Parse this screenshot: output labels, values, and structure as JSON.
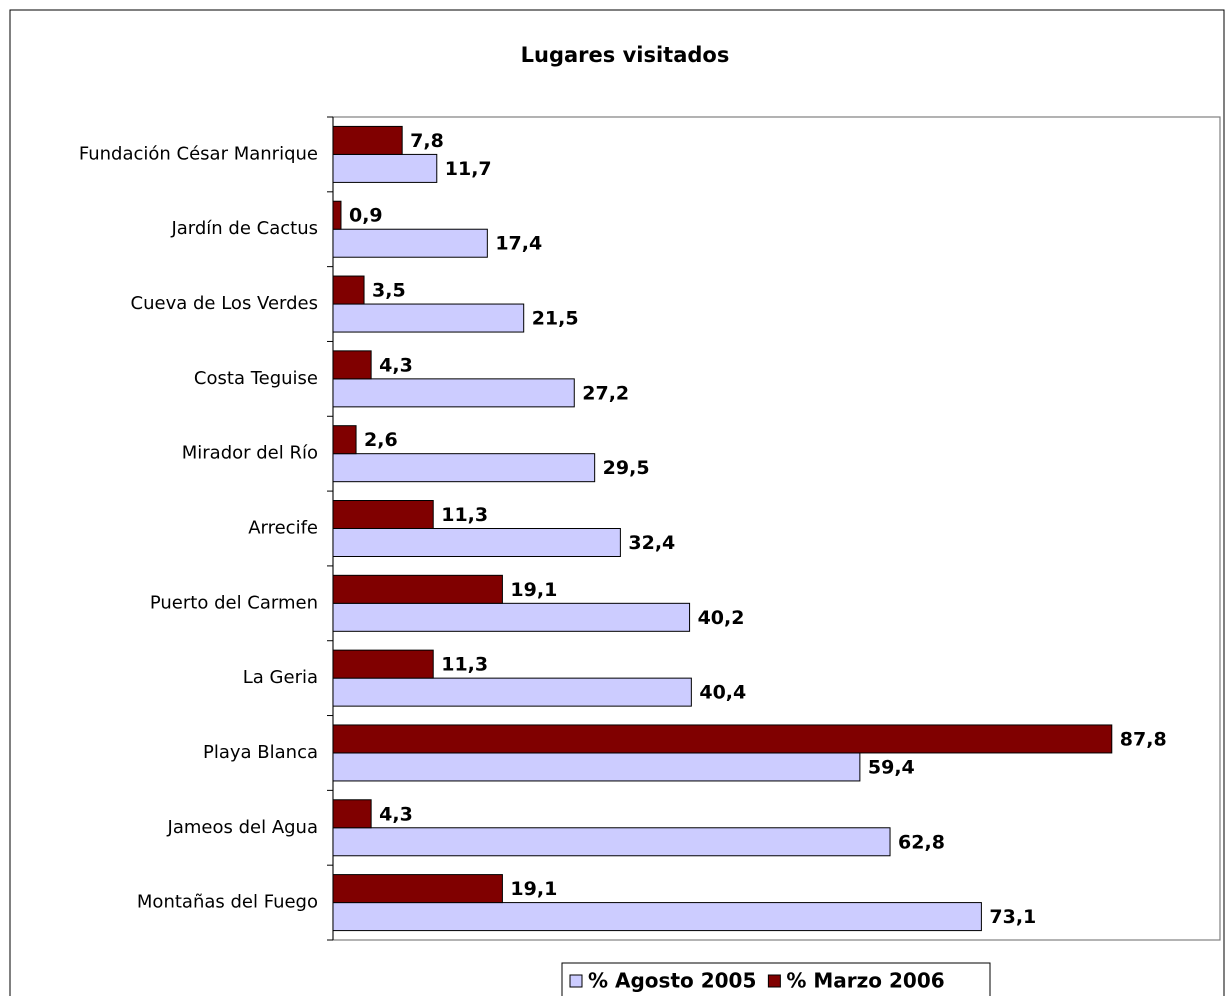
{
  "chart_data": {
    "type": "bar",
    "orientation": "horizontal",
    "title": "Lugares visitados",
    "categories": [
      "Fundación César Manrique",
      "Jardín de Cactus",
      "Cueva de Los Verdes",
      "Costa Teguise",
      "Mirador del Río",
      "Arrecife",
      "Puerto del Carmen",
      "La Geria",
      "Playa Blanca",
      "Jameos del Agua",
      "Montañas del Fuego"
    ],
    "series": [
      {
        "name": "% Agosto 2005",
        "color": "#ccccff",
        "values": [
          11.7,
          17.4,
          21.5,
          27.2,
          29.5,
          32.4,
          40.2,
          40.4,
          59.4,
          62.8,
          73.1
        ],
        "value_labels": [
          "11,7",
          "17,4",
          "21,5",
          "27,2",
          "29,5",
          "32,4",
          "40,2",
          "40,4",
          "59,4",
          "62,8",
          "73,1"
        ]
      },
      {
        "name": "% Marzo 2006",
        "color": "#800000",
        "values": [
          7.8,
          0.9,
          3.5,
          4.3,
          2.6,
          11.3,
          19.1,
          11.3,
          87.8,
          4.3,
          19.1
        ],
        "value_labels": [
          "7,8",
          "0,9",
          "3,5",
          "4,3",
          "2,6",
          "11,3",
          "19,1",
          "11,3",
          "87,8",
          "4,3",
          "19,1"
        ]
      }
    ],
    "xlim": [
      0,
      100
    ],
    "legend": "bottom"
  }
}
